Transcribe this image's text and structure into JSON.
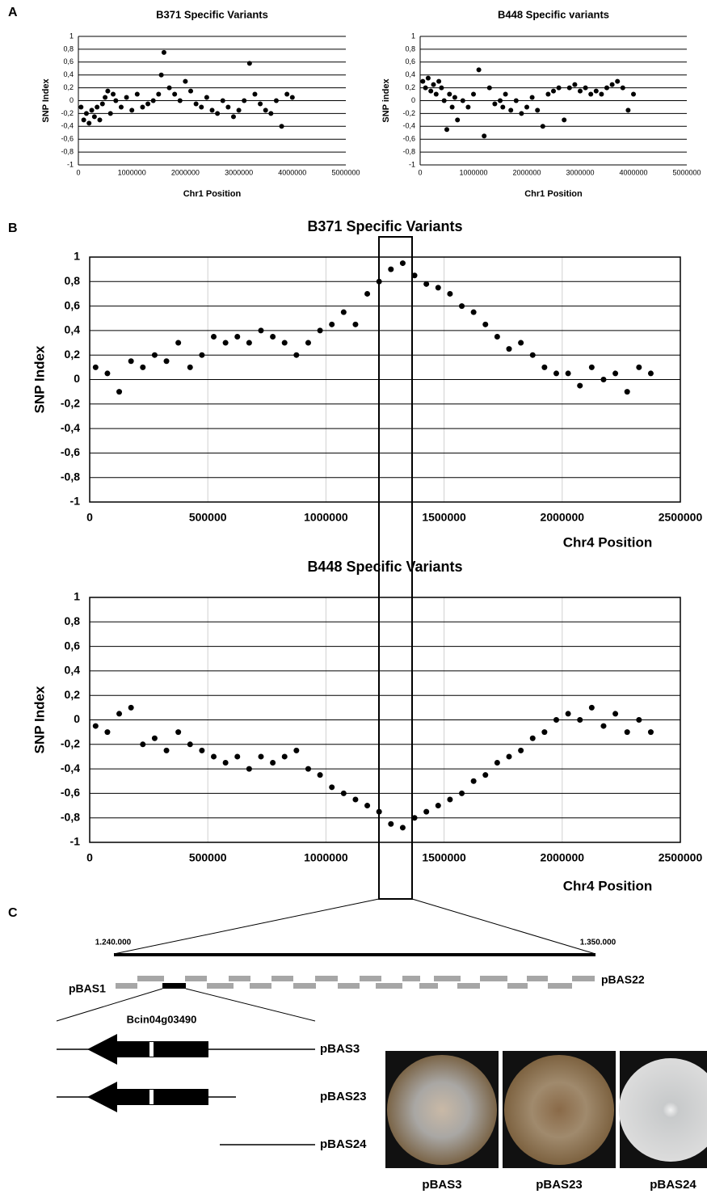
{
  "chart_data": [
    {
      "type": "scatter",
      "title": "B371 Specific Variants",
      "x_label": "Chr1 Position",
      "y_label": "SNP Index",
      "color": "#000000",
      "grid": true,
      "xgrid": false,
      "frame": false,
      "x": [
        50000,
        100000,
        150000,
        200000,
        250000,
        300000,
        350000,
        400000,
        450000,
        500000,
        550000,
        600000,
        650000,
        700000,
        800000,
        900000,
        1000000,
        1100000,
        1200000,
        1300000,
        1400000,
        1500000,
        1550000,
        1600000,
        1700000,
        1800000,
        1900000,
        2000000,
        2100000,
        2200000,
        2300000,
        2400000,
        2500000,
        2600000,
        2700000,
        2800000,
        2900000,
        3000000,
        3100000,
        3200000,
        3300000,
        3400000,
        3500000,
        3600000,
        3700000,
        3800000,
        3900000,
        4000000
      ],
      "values": [
        -0.1,
        -0.3,
        -0.2,
        -0.35,
        -0.15,
        -0.25,
        -0.1,
        -0.3,
        -0.05,
        0.05,
        0.15,
        -0.2,
        0.1,
        0.0,
        -0.1,
        0.05,
        -0.15,
        0.1,
        -0.1,
        -0.05,
        0.0,
        0.1,
        0.4,
        0.75,
        0.2,
        0.1,
        0.0,
        0.3,
        0.15,
        -0.05,
        -0.1,
        0.05,
        -0.15,
        -0.2,
        0.0,
        -0.1,
        -0.25,
        -0.15,
        0.0,
        0.58,
        0.1,
        -0.05,
        -0.15,
        -0.2,
        0.0,
        -0.4,
        0.1,
        0.05
      ],
      "xlim": [
        0,
        5000000
      ],
      "xticks": [
        0,
        1000000,
        2000000,
        3000000,
        4000000,
        5000000
      ],
      "ylim": [
        -1,
        1
      ],
      "yticks": [
        1,
        {
          "value": 0.8,
          "label": "0,8"
        },
        {
          "value": 0.6,
          "label": "0,6"
        },
        {
          "value": 0.4,
          "label": "0,4"
        },
        {
          "value": 0.2,
          "label": "0,2"
        },
        0,
        {
          "value": -0.2,
          "label": "-0,2"
        },
        {
          "value": -0.4,
          "label": "-0,4"
        },
        {
          "value": -0.6,
          "label": "-0,6"
        },
        {
          "value": -0.8,
          "label": "-0,8"
        },
        -1
      ]
    },
    {
      "type": "scatter",
      "title": "B448 Specific variants",
      "x_label": "Chr1 Position",
      "y_label": "SNP index",
      "color": "#000000",
      "grid": true,
      "xgrid": false,
      "frame": false,
      "x": [
        50000,
        100000,
        150000,
        200000,
        250000,
        300000,
        350000,
        400000,
        450000,
        500000,
        550000,
        600000,
        650000,
        700000,
        800000,
        900000,
        1000000,
        1100000,
        1200000,
        1300000,
        1400000,
        1500000,
        1550000,
        1600000,
        1700000,
        1800000,
        1900000,
        2000000,
        2100000,
        2200000,
        2300000,
        2400000,
        2500000,
        2600000,
        2700000,
        2800000,
        2900000,
        3000000,
        3100000,
        3200000,
        3300000,
        3400000,
        3500000,
        3600000,
        3700000,
        3800000,
        3900000,
        4000000
      ],
      "values": [
        0.3,
        0.2,
        0.35,
        0.15,
        0.25,
        0.1,
        0.3,
        0.2,
        0.0,
        -0.45,
        0.1,
        -0.1,
        0.05,
        -0.3,
        0.0,
        -0.1,
        0.1,
        0.48,
        -0.55,
        0.2,
        -0.05,
        0.0,
        -0.1,
        0.1,
        -0.15,
        0.0,
        -0.2,
        -0.1,
        0.05,
        -0.15,
        -0.4,
        0.1,
        0.15,
        0.2,
        -0.3,
        0.2,
        0.25,
        0.15,
        0.2,
        0.1,
        0.15,
        0.1,
        0.2,
        0.25,
        0.3,
        0.2,
        -0.15,
        0.1
      ],
      "xlim": [
        0,
        5000000
      ],
      "xticks": [
        0,
        1000000,
        2000000,
        3000000,
        4000000,
        5000000
      ],
      "ylim": [
        -1,
        1
      ],
      "yticks": [
        1,
        {
          "value": 0.8,
          "label": "0,8"
        },
        {
          "value": 0.6,
          "label": "0,6"
        },
        {
          "value": 0.4,
          "label": "0,4"
        },
        {
          "value": 0.2,
          "label": "0,2"
        },
        0,
        {
          "value": -0.2,
          "label": "-0,2"
        },
        {
          "value": -0.4,
          "label": "-0,4"
        },
        {
          "value": -0.6,
          "label": "-0,6"
        },
        {
          "value": -0.8,
          "label": "-0,8"
        },
        -1
      ]
    },
    {
      "type": "scatter",
      "title": "B371 Specific Variants",
      "x_label": "Chr4 Position",
      "y_label": "SNP Index",
      "color": "#000000",
      "grid": true,
      "xgrid": true,
      "frame": true,
      "x": [
        25000,
        75000,
        125000,
        175000,
        225000,
        275000,
        325000,
        375000,
        425000,
        475000,
        525000,
        575000,
        625000,
        675000,
        725000,
        775000,
        825000,
        875000,
        925000,
        975000,
        1025000,
        1075000,
        1125000,
        1175000,
        1225000,
        1275000,
        1325000,
        1375000,
        1425000,
        1475000,
        1525000,
        1575000,
        1625000,
        1675000,
        1725000,
        1775000,
        1825000,
        1875000,
        1925000,
        1975000,
        2025000,
        2075000,
        2125000,
        2175000,
        2225000,
        2275000,
        2325000,
        2375000
      ],
      "values": [
        0.1,
        0.05,
        -0.1,
        0.15,
        0.1,
        0.2,
        0.15,
        0.3,
        0.1,
        0.2,
        0.35,
        0.3,
        0.35,
        0.3,
        0.4,
        0.35,
        0.3,
        0.2,
        0.3,
        0.4,
        0.45,
        0.55,
        0.45,
        0.7,
        0.8,
        0.9,
        0.95,
        0.85,
        0.78,
        0.75,
        0.7,
        0.6,
        0.55,
        0.45,
        0.35,
        0.25,
        0.3,
        0.2,
        0.1,
        0.05,
        0.05,
        -0.05,
        0.1,
        0.0,
        0.05,
        -0.1,
        0.1,
        0.05
      ],
      "xlim": [
        0,
        2500000
      ],
      "xticks": [
        0,
        500000,
        1000000,
        1500000,
        2000000,
        2500000
      ],
      "ylim": [
        -1,
        1
      ],
      "yticks": [
        1,
        {
          "value": 0.8,
          "label": "0,8"
        },
        {
          "value": 0.6,
          "label": "0,6"
        },
        {
          "value": 0.4,
          "label": "0,4"
        },
        {
          "value": 0.2,
          "label": "0,2"
        },
        0,
        {
          "value": -0.2,
          "label": "-0,2"
        },
        {
          "value": -0.4,
          "label": "-0,4"
        },
        {
          "value": -0.6,
          "label": "-0,6"
        },
        {
          "value": -0.8,
          "label": "-0,8"
        },
        -1
      ]
    },
    {
      "type": "scatter",
      "title": "B448 Specific Variants",
      "x_label": "Chr4 Position",
      "y_label": "SNP Index",
      "color": "#000000",
      "grid": true,
      "xgrid": true,
      "frame": true,
      "x": [
        25000,
        75000,
        125000,
        175000,
        225000,
        275000,
        325000,
        375000,
        425000,
        475000,
        525000,
        575000,
        625000,
        675000,
        725000,
        775000,
        825000,
        875000,
        925000,
        975000,
        1025000,
        1075000,
        1125000,
        1175000,
        1225000,
        1275000,
        1325000,
        1375000,
        1425000,
        1475000,
        1525000,
        1575000,
        1625000,
        1675000,
        1725000,
        1775000,
        1825000,
        1875000,
        1925000,
        1975000,
        2025000,
        2075000,
        2125000,
        2175000,
        2225000,
        2275000,
        2325000,
        2375000
      ],
      "values": [
        -0.05,
        -0.1,
        0.05,
        0.1,
        -0.2,
        -0.15,
        -0.25,
        -0.1,
        -0.2,
        -0.25,
        -0.3,
        -0.35,
        -0.3,
        -0.4,
        -0.3,
        -0.35,
        -0.3,
        -0.25,
        -0.4,
        -0.45,
        -0.55,
        -0.6,
        -0.65,
        -0.7,
        -0.75,
        -0.85,
        -0.88,
        -0.8,
        -0.75,
        -0.7,
        -0.65,
        -0.6,
        -0.5,
        -0.45,
        -0.35,
        -0.3,
        -0.25,
        -0.15,
        -0.1,
        0.0,
        0.05,
        0.0,
        0.1,
        -0.05,
        0.05,
        -0.1,
        0.0,
        -0.1
      ],
      "xlim": [
        0,
        2500000
      ],
      "xticks": [
        0,
        500000,
        1000000,
        1500000,
        2000000,
        2500000
      ],
      "ylim": [
        -1,
        1
      ],
      "yticks": [
        1,
        {
          "value": 0.8,
          "label": "0,8"
        },
        {
          "value": 0.6,
          "label": "0,6"
        },
        {
          "value": 0.4,
          "label": "0,4"
        },
        {
          "value": 0.2,
          "label": "0,2"
        },
        0,
        {
          "value": -0.2,
          "label": "-0,2"
        },
        {
          "value": -0.4,
          "label": "-0,4"
        },
        {
          "value": -0.6,
          "label": "-0,6"
        },
        {
          "value": -0.8,
          "label": "-0,8"
        },
        -1
      ]
    }
  ],
  "figure": {
    "panel_labels": [
      "A",
      "B",
      "C"
    ],
    "region": {
      "start": "1.240.000",
      "end": "1.350.000"
    },
    "clones": {
      "first": "pBAS1",
      "last": "pBAS22"
    },
    "gene": "Bcin04g03490",
    "constructs": [
      "pBAS3",
      "pBAS23",
      "pBAS24"
    ],
    "plates": [
      "pBAS3",
      "pBAS23",
      "pBAS24"
    ]
  }
}
